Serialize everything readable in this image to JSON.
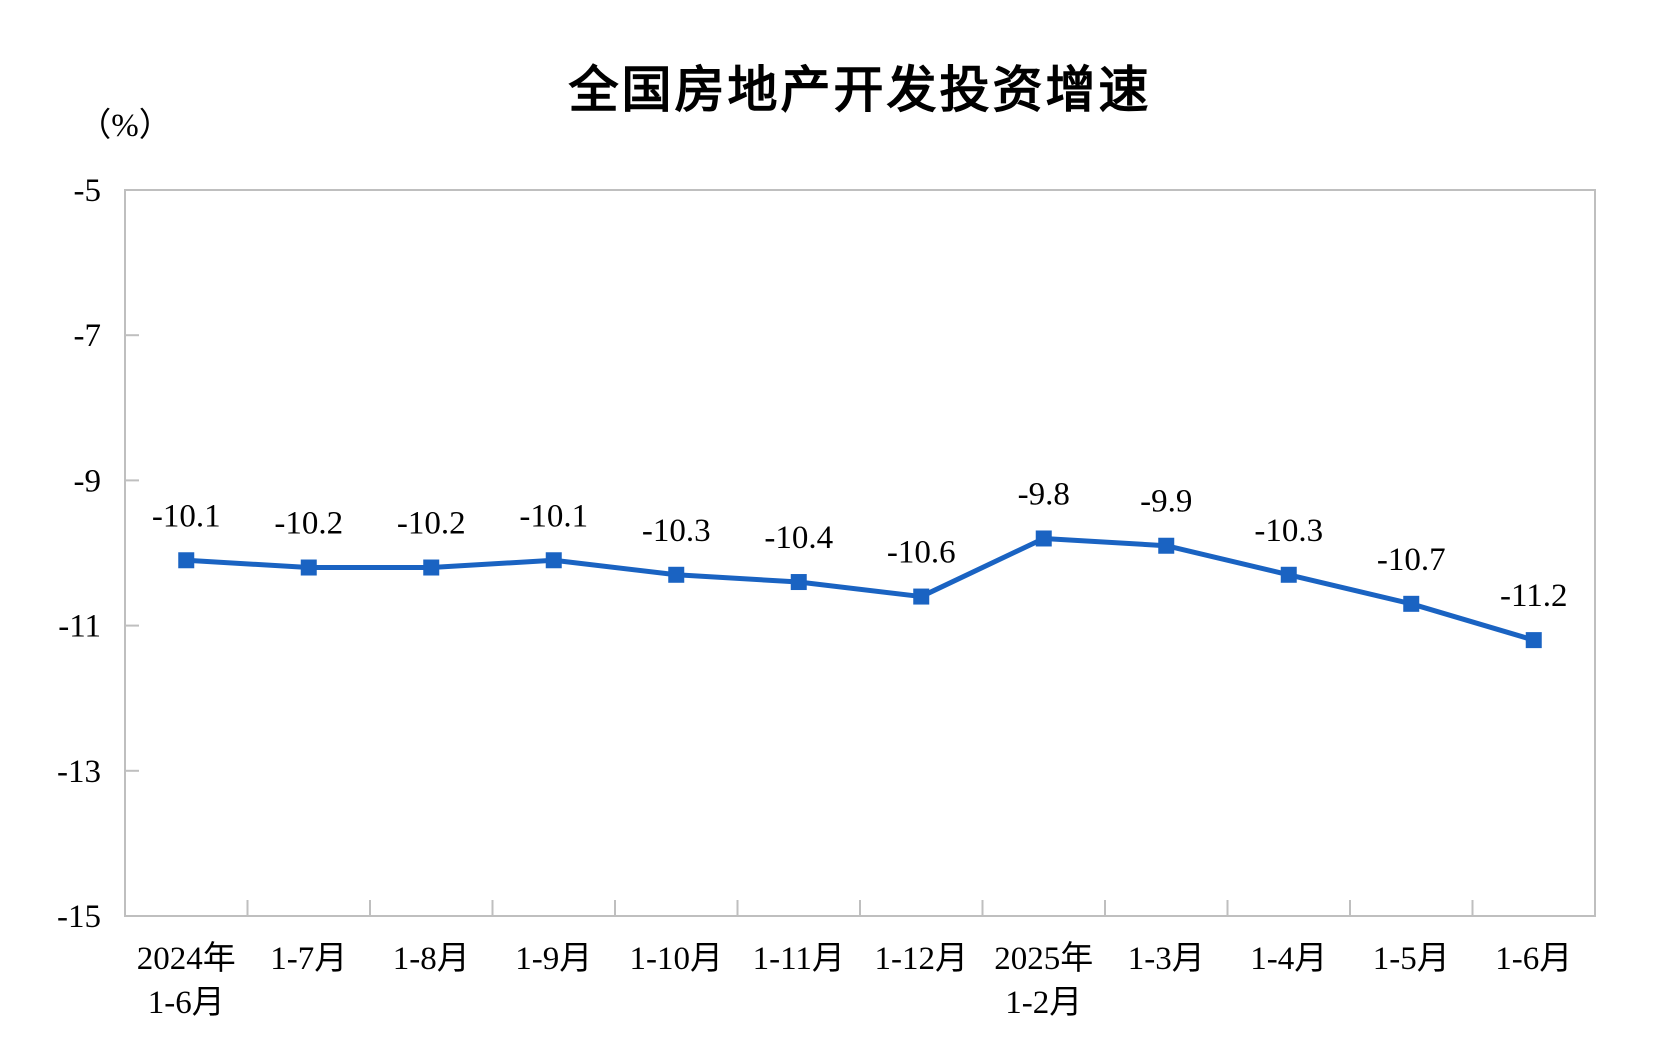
{
  "chart_data": {
    "type": "line",
    "title": "全国房地产开发投资增速",
    "unit_label": "（%）",
    "categories": [
      "2024年\n1-6月",
      "1-7月",
      "1-8月",
      "1-9月",
      "1-10月",
      "1-11月",
      "1-12月",
      "2025年\n1-2月",
      "1-3月",
      "1-4月",
      "1-5月",
      "1-6月"
    ],
    "values": [
      -10.1,
      -10.2,
      -10.2,
      -10.1,
      -10.3,
      -10.4,
      -10.6,
      -9.8,
      -9.9,
      -10.3,
      -10.7,
      -11.2
    ],
    "data_labels": [
      "-10.1",
      "-10.2",
      "-10.2",
      "-10.1",
      "-10.3",
      "-10.4",
      "-10.6",
      "-9.8",
      "-9.9",
      "-10.3",
      "-10.7",
      "-11.2"
    ],
    "y_ticks": [
      "-5",
      "-7",
      "-9",
      "-11",
      "-13",
      "-15"
    ],
    "ylim": [
      -15,
      -5
    ],
    "xlabel": "",
    "ylabel": "（%）",
    "grid": false,
    "legend_position": "none",
    "marker_shape": "square",
    "colors": {
      "series": "#1A63C2",
      "axis": "#BFBFBF",
      "text": "#000000",
      "background": "#FFFFFF"
    }
  }
}
